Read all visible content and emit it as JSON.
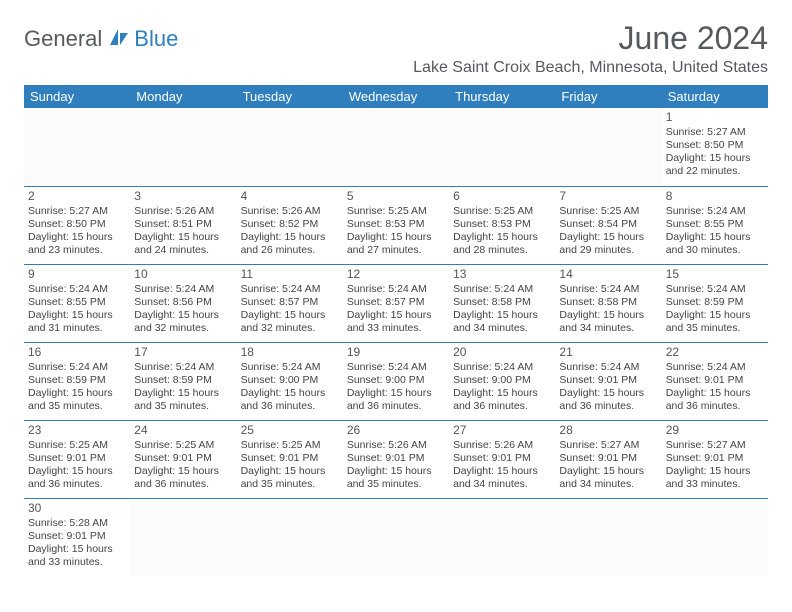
{
  "logo": {
    "text1": "General",
    "text2": "Blue"
  },
  "title": "June 2024",
  "location": "Lake Saint Croix Beach, Minnesota, United States",
  "colors": {
    "header_bg": "#2f7fbf",
    "header_text": "#ffffff",
    "border": "#2f7fbf",
    "logo_gray": "#555a5e",
    "logo_blue": "#2f7fbf",
    "body_text": "#444444"
  },
  "days_of_week": [
    "Sunday",
    "Monday",
    "Tuesday",
    "Wednesday",
    "Thursday",
    "Friday",
    "Saturday"
  ],
  "weeks": [
    [
      null,
      null,
      null,
      null,
      null,
      null,
      {
        "n": "1",
        "sunrise": "Sunrise: 5:27 AM",
        "sunset": "Sunset: 8:50 PM",
        "daylight1": "Daylight: 15 hours",
        "daylight2": "and 22 minutes."
      }
    ],
    [
      {
        "n": "2",
        "sunrise": "Sunrise: 5:27 AM",
        "sunset": "Sunset: 8:50 PM",
        "daylight1": "Daylight: 15 hours",
        "daylight2": "and 23 minutes."
      },
      {
        "n": "3",
        "sunrise": "Sunrise: 5:26 AM",
        "sunset": "Sunset: 8:51 PM",
        "daylight1": "Daylight: 15 hours",
        "daylight2": "and 24 minutes."
      },
      {
        "n": "4",
        "sunrise": "Sunrise: 5:26 AM",
        "sunset": "Sunset: 8:52 PM",
        "daylight1": "Daylight: 15 hours",
        "daylight2": "and 26 minutes."
      },
      {
        "n": "5",
        "sunrise": "Sunrise: 5:25 AM",
        "sunset": "Sunset: 8:53 PM",
        "daylight1": "Daylight: 15 hours",
        "daylight2": "and 27 minutes."
      },
      {
        "n": "6",
        "sunrise": "Sunrise: 5:25 AM",
        "sunset": "Sunset: 8:53 PM",
        "daylight1": "Daylight: 15 hours",
        "daylight2": "and 28 minutes."
      },
      {
        "n": "7",
        "sunrise": "Sunrise: 5:25 AM",
        "sunset": "Sunset: 8:54 PM",
        "daylight1": "Daylight: 15 hours",
        "daylight2": "and 29 minutes."
      },
      {
        "n": "8",
        "sunrise": "Sunrise: 5:24 AM",
        "sunset": "Sunset: 8:55 PM",
        "daylight1": "Daylight: 15 hours",
        "daylight2": "and 30 minutes."
      }
    ],
    [
      {
        "n": "9",
        "sunrise": "Sunrise: 5:24 AM",
        "sunset": "Sunset: 8:55 PM",
        "daylight1": "Daylight: 15 hours",
        "daylight2": "and 31 minutes."
      },
      {
        "n": "10",
        "sunrise": "Sunrise: 5:24 AM",
        "sunset": "Sunset: 8:56 PM",
        "daylight1": "Daylight: 15 hours",
        "daylight2": "and 32 minutes."
      },
      {
        "n": "11",
        "sunrise": "Sunrise: 5:24 AM",
        "sunset": "Sunset: 8:57 PM",
        "daylight1": "Daylight: 15 hours",
        "daylight2": "and 32 minutes."
      },
      {
        "n": "12",
        "sunrise": "Sunrise: 5:24 AM",
        "sunset": "Sunset: 8:57 PM",
        "daylight1": "Daylight: 15 hours",
        "daylight2": "and 33 minutes."
      },
      {
        "n": "13",
        "sunrise": "Sunrise: 5:24 AM",
        "sunset": "Sunset: 8:58 PM",
        "daylight1": "Daylight: 15 hours",
        "daylight2": "and 34 minutes."
      },
      {
        "n": "14",
        "sunrise": "Sunrise: 5:24 AM",
        "sunset": "Sunset: 8:58 PM",
        "daylight1": "Daylight: 15 hours",
        "daylight2": "and 34 minutes."
      },
      {
        "n": "15",
        "sunrise": "Sunrise: 5:24 AM",
        "sunset": "Sunset: 8:59 PM",
        "daylight1": "Daylight: 15 hours",
        "daylight2": "and 35 minutes."
      }
    ],
    [
      {
        "n": "16",
        "sunrise": "Sunrise: 5:24 AM",
        "sunset": "Sunset: 8:59 PM",
        "daylight1": "Daylight: 15 hours",
        "daylight2": "and 35 minutes."
      },
      {
        "n": "17",
        "sunrise": "Sunrise: 5:24 AM",
        "sunset": "Sunset: 8:59 PM",
        "daylight1": "Daylight: 15 hours",
        "daylight2": "and 35 minutes."
      },
      {
        "n": "18",
        "sunrise": "Sunrise: 5:24 AM",
        "sunset": "Sunset: 9:00 PM",
        "daylight1": "Daylight: 15 hours",
        "daylight2": "and 36 minutes."
      },
      {
        "n": "19",
        "sunrise": "Sunrise: 5:24 AM",
        "sunset": "Sunset: 9:00 PM",
        "daylight1": "Daylight: 15 hours",
        "daylight2": "and 36 minutes."
      },
      {
        "n": "20",
        "sunrise": "Sunrise: 5:24 AM",
        "sunset": "Sunset: 9:00 PM",
        "daylight1": "Daylight: 15 hours",
        "daylight2": "and 36 minutes."
      },
      {
        "n": "21",
        "sunrise": "Sunrise: 5:24 AM",
        "sunset": "Sunset: 9:01 PM",
        "daylight1": "Daylight: 15 hours",
        "daylight2": "and 36 minutes."
      },
      {
        "n": "22",
        "sunrise": "Sunrise: 5:24 AM",
        "sunset": "Sunset: 9:01 PM",
        "daylight1": "Daylight: 15 hours",
        "daylight2": "and 36 minutes."
      }
    ],
    [
      {
        "n": "23",
        "sunrise": "Sunrise: 5:25 AM",
        "sunset": "Sunset: 9:01 PM",
        "daylight1": "Daylight: 15 hours",
        "daylight2": "and 36 minutes."
      },
      {
        "n": "24",
        "sunrise": "Sunrise: 5:25 AM",
        "sunset": "Sunset: 9:01 PM",
        "daylight1": "Daylight: 15 hours",
        "daylight2": "and 36 minutes."
      },
      {
        "n": "25",
        "sunrise": "Sunrise: 5:25 AM",
        "sunset": "Sunset: 9:01 PM",
        "daylight1": "Daylight: 15 hours",
        "daylight2": "and 35 minutes."
      },
      {
        "n": "26",
        "sunrise": "Sunrise: 5:26 AM",
        "sunset": "Sunset: 9:01 PM",
        "daylight1": "Daylight: 15 hours",
        "daylight2": "and 35 minutes."
      },
      {
        "n": "27",
        "sunrise": "Sunrise: 5:26 AM",
        "sunset": "Sunset: 9:01 PM",
        "daylight1": "Daylight: 15 hours",
        "daylight2": "and 34 minutes."
      },
      {
        "n": "28",
        "sunrise": "Sunrise: 5:27 AM",
        "sunset": "Sunset: 9:01 PM",
        "daylight1": "Daylight: 15 hours",
        "daylight2": "and 34 minutes."
      },
      {
        "n": "29",
        "sunrise": "Sunrise: 5:27 AM",
        "sunset": "Sunset: 9:01 PM",
        "daylight1": "Daylight: 15 hours",
        "daylight2": "and 33 minutes."
      }
    ],
    [
      {
        "n": "30",
        "sunrise": "Sunrise: 5:28 AM",
        "sunset": "Sunset: 9:01 PM",
        "daylight1": "Daylight: 15 hours",
        "daylight2": "and 33 minutes."
      },
      null,
      null,
      null,
      null,
      null,
      null
    ]
  ]
}
